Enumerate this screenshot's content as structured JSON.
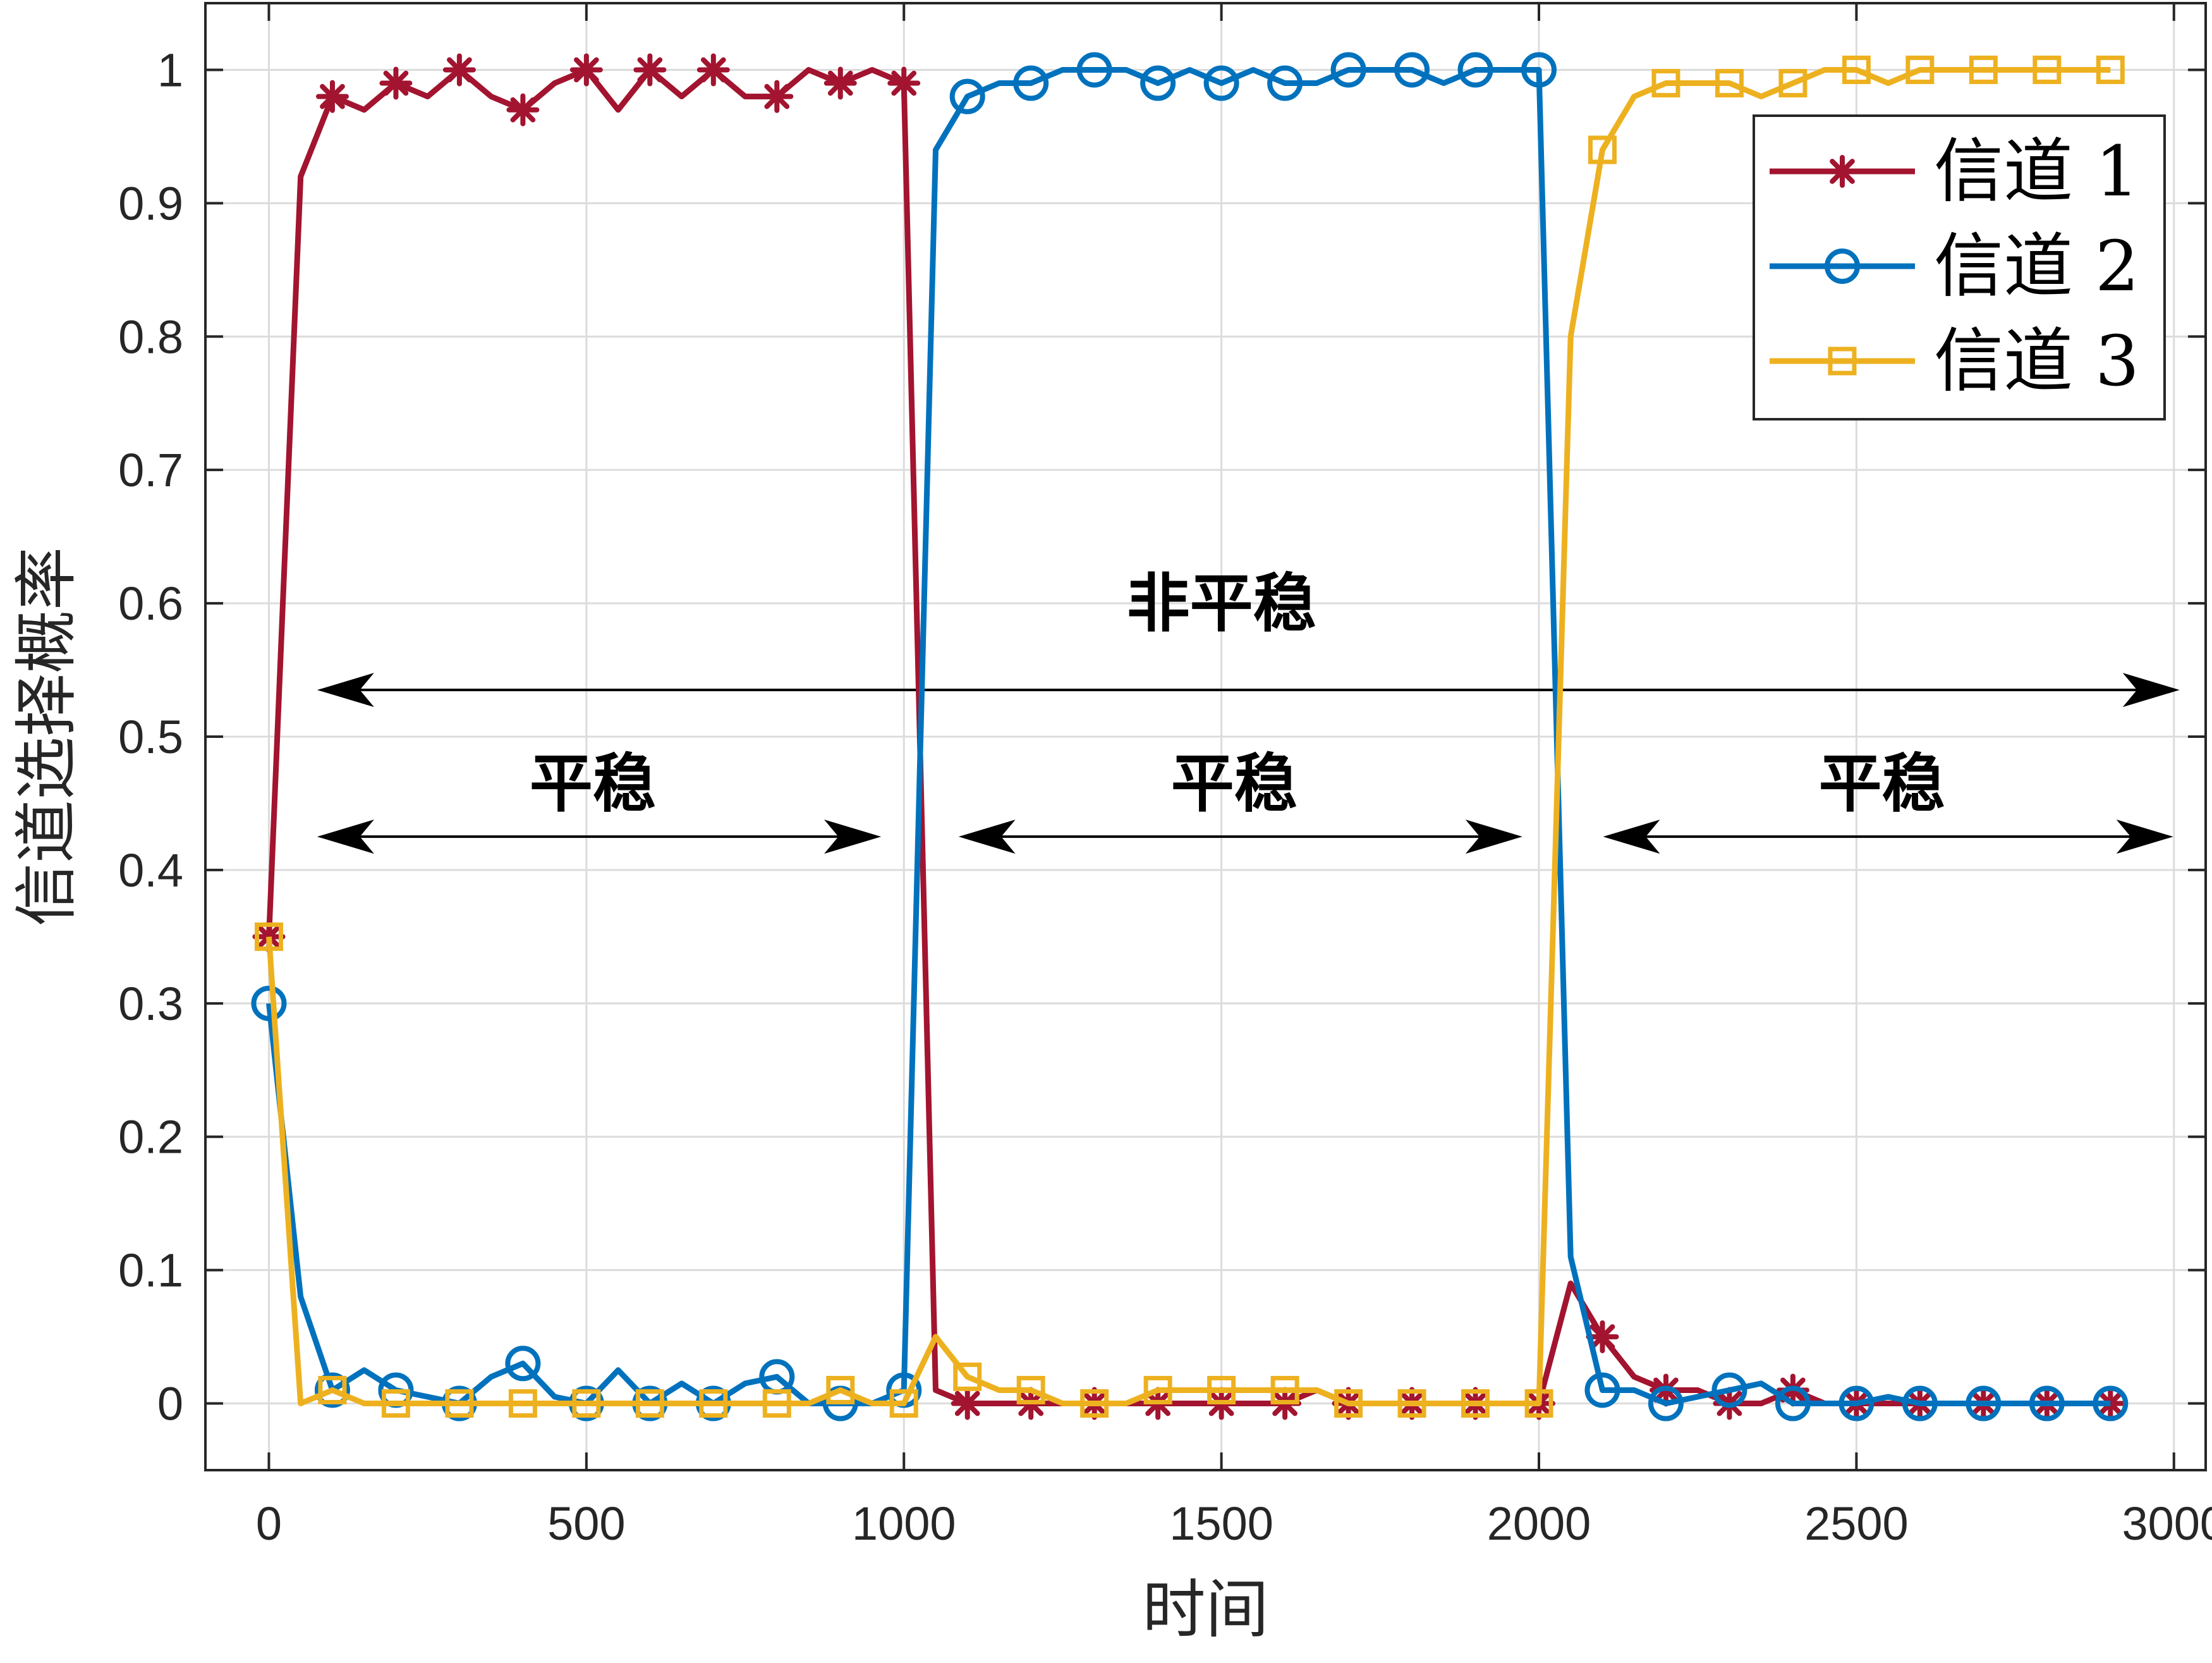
{
  "chart_data": {
    "type": "line",
    "title": "",
    "xlabel": "时间",
    "ylabel": "信道选择概率",
    "xlim": [
      -100,
      3050
    ],
    "ylim": [
      -0.05,
      1.05
    ],
    "xticks": [
      0,
      500,
      1000,
      1500,
      2000,
      2500,
      3000
    ],
    "xtick_labels": [
      "0",
      "500",
      "1000",
      "1500",
      "2000",
      "2500",
      "3000"
    ],
    "yticks": [
      0,
      0.1,
      0.2,
      0.3,
      0.4,
      0.5,
      0.6,
      0.7,
      0.8,
      0.9,
      1
    ],
    "ytick_labels": [
      "0",
      "0.1",
      "0.2",
      "0.3",
      "0.4",
      "0.5",
      "0.6",
      "0.7",
      "0.8",
      "0.9",
      "1"
    ],
    "grid": true,
    "legend_position": "top-right",
    "series": [
      {
        "name": "信道 1",
        "color": "#A2142F",
        "marker": "asterisk",
        "x": [
          0,
          50,
          100,
          150,
          200,
          250,
          300,
          350,
          400,
          450,
          500,
          550,
          600,
          650,
          700,
          750,
          800,
          850,
          900,
          950,
          1000,
          1050,
          1100,
          1150,
          1200,
          1250,
          1300,
          1350,
          1400,
          1450,
          1500,
          1550,
          1600,
          1650,
          1700,
          1750,
          1800,
          1850,
          1900,
          1950,
          2000,
          2050,
          2100,
          2150,
          2200,
          2250,
          2300,
          2350,
          2400,
          2450,
          2500,
          2550,
          2600,
          2650,
          2700,
          2750,
          2800,
          2850,
          2900
        ],
        "y": [
          0.35,
          0.92,
          0.98,
          0.97,
          0.99,
          0.98,
          1.0,
          0.98,
          0.97,
          0.99,
          1.0,
          0.97,
          1.0,
          0.98,
          1.0,
          0.98,
          0.98,
          1.0,
          0.99,
          1.0,
          0.99,
          0.01,
          0,
          0,
          0,
          0,
          0,
          0,
          0,
          0,
          0,
          0,
          0,
          0.01,
          0,
          0,
          0,
          0,
          0,
          0,
          0,
          0.09,
          0.05,
          0.02,
          0.01,
          0.01,
          0,
          0,
          0.01,
          0,
          0,
          0,
          0,
          0,
          0,
          0,
          0,
          0,
          0
        ],
        "marker_every": 2
      },
      {
        "name": "信道 2",
        "color": "#0072BD",
        "marker": "circle",
        "x": [
          0,
          50,
          100,
          150,
          200,
          250,
          300,
          350,
          400,
          450,
          500,
          550,
          600,
          650,
          700,
          750,
          800,
          850,
          900,
          950,
          1000,
          1050,
          1100,
          1150,
          1200,
          1250,
          1300,
          1350,
          1400,
          1450,
          1500,
          1550,
          1600,
          1650,
          1700,
          1750,
          1800,
          1850,
          1900,
          1950,
          2000,
          2050,
          2100,
          2150,
          2200,
          2250,
          2300,
          2350,
          2400,
          2450,
          2500,
          2550,
          2600,
          2650,
          2700,
          2750,
          2800,
          2850,
          2900
        ],
        "y": [
          0.3,
          0.08,
          0.01,
          0.025,
          0.01,
          0.005,
          0,
          0.02,
          0.03,
          0.005,
          0,
          0.025,
          0,
          0.015,
          0,
          0.015,
          0.02,
          0,
          0,
          0,
          0.01,
          0.94,
          0.98,
          0.99,
          0.99,
          1.0,
          1.0,
          1.0,
          0.99,
          1.0,
          0.99,
          1.0,
          0.99,
          0.99,
          1.0,
          1.0,
          1.0,
          0.99,
          1.0,
          1.0,
          1.0,
          0.11,
          0.01,
          0.01,
          0,
          0.005,
          0.01,
          0.015,
          0,
          0,
          0,
          0.005,
          0,
          0,
          0,
          0,
          0,
          0,
          0
        ],
        "marker_every": 2
      },
      {
        "name": "信道 3",
        "color": "#EDB120",
        "marker": "square",
        "x": [
          0,
          50,
          100,
          150,
          200,
          250,
          300,
          350,
          400,
          450,
          500,
          550,
          600,
          650,
          700,
          750,
          800,
          850,
          900,
          950,
          1000,
          1050,
          1100,
          1150,
          1200,
          1250,
          1300,
          1350,
          1400,
          1450,
          1500,
          1550,
          1600,
          1650,
          1700,
          1750,
          1800,
          1850,
          1900,
          1950,
          2000,
          2050,
          2100,
          2150,
          2200,
          2250,
          2300,
          2350,
          2400,
          2450,
          2500,
          2550,
          2600,
          2650,
          2700,
          2750,
          2800,
          2850,
          2900
        ],
        "y": [
          0.35,
          0,
          0.01,
          0,
          0,
          0,
          0,
          0,
          0,
          0,
          0,
          0,
          0,
          0,
          0,
          0,
          0,
          0,
          0.01,
          0,
          0,
          0.05,
          0.02,
          0.01,
          0.01,
          0,
          0,
          0,
          0.01,
          0.01,
          0.01,
          0.01,
          0.01,
          0.01,
          0,
          0,
          0,
          0,
          0,
          0,
          0,
          0.8,
          0.94,
          0.98,
          0.99,
          0.99,
          0.99,
          0.98,
          0.99,
          1.0,
          1.0,
          0.99,
          1.0,
          1.0,
          1.0,
          1.0,
          1.0,
          1.0,
          1.0
        ],
        "marker_every": 2
      }
    ],
    "annotations": [
      {
        "id": "nonstationary",
        "text": "非平稳",
        "label_x": 1500,
        "label_y": 0.6,
        "arrow_y": 0.535,
        "arrow_x_from": 85,
        "arrow_x_to": 3000
      },
      {
        "id": "stationary-1",
        "text": "平稳",
        "label_x": 510,
        "label_y": 0.465,
        "arrow_y": 0.425,
        "arrow_x_from": 85,
        "arrow_x_to": 955
      },
      {
        "id": "stationary-2",
        "text": "平稳",
        "label_x": 1520,
        "label_y": 0.465,
        "arrow_y": 0.425,
        "arrow_x_from": 1095,
        "arrow_x_to": 1965
      },
      {
        "id": "stationary-3",
        "text": "平稳",
        "label_x": 2540,
        "label_y": 0.465,
        "arrow_y": 0.425,
        "arrow_x_from": 2110,
        "arrow_x_to": 2990
      }
    ]
  }
}
